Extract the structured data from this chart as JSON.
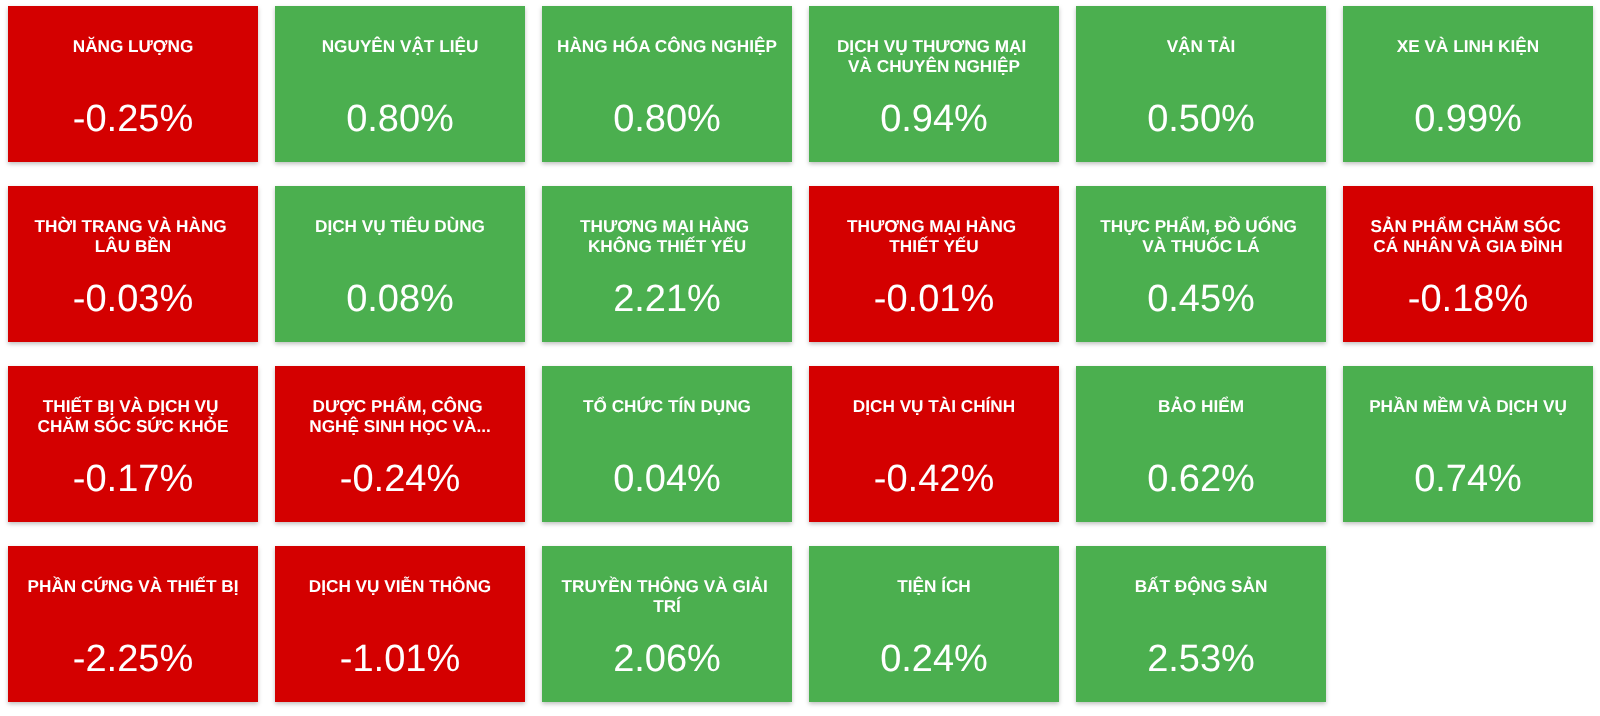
{
  "chart_data": {
    "type": "other",
    "categories": [
      "NĂNG LƯỢNG",
      "NGUYÊN VẬT LIỆU",
      "HÀNG HÓA CÔNG NGHIỆP",
      "DỊCH VỤ THƯƠNG MẠI VÀ CHUYÊN NGHIỆP",
      "VẬN TẢI",
      "XE VÀ LINH KIỆN",
      "THỜI TRANG VÀ HÀNG LÂU BỀN",
      "DỊCH VỤ TIÊU DÙNG",
      "THƯƠNG MẠI HÀNG KHÔNG THIẾT YẾU",
      "THƯƠNG MẠI HÀNG THIẾT YẾU",
      "THỰC PHẨM, ĐỒ UỐNG VÀ THUỐC LÁ",
      "SẢN PHẨM CHĂM SÓC CÁ NHÂN VÀ GIA ĐÌNH",
      "THIẾT BỊ VÀ DỊCH VỤ CHĂM SÓC SỨC KHỎE",
      "DƯỢC PHẨM, CÔNG NGHỆ SINH HỌC VÀ...",
      "TỔ CHỨC TÍN DỤNG",
      "DỊCH VỤ TÀI CHÍNH",
      "BẢO HIỂM",
      "PHẦN MỀM VÀ DỊCH VỤ",
      "PHẦN CỨNG VÀ THIẾT BỊ",
      "DỊCH VỤ VIỄN THÔNG",
      "TRUYỀN THÔNG VÀ GIẢI TRÍ",
      "TIỆN ÍCH",
      "BẤT ĐỘNG SẢN"
    ],
    "values": [
      -0.25,
      0.8,
      0.8,
      0.94,
      0.5,
      0.99,
      -0.03,
      0.08,
      2.21,
      -0.01,
      0.45,
      -0.18,
      -0.17,
      -0.24,
      0.04,
      -0.42,
      0.62,
      0.74,
      -2.25,
      -1.01,
      2.06,
      0.24,
      2.53
    ],
    "value_labels": [
      "-0.25%",
      "0.80%",
      "0.80%",
      "0.94%",
      "0.50%",
      "0.99%",
      "-0.03%",
      "0.08%",
      "2.21%",
      "-0.01%",
      "0.45%",
      "-0.18%",
      "-0.17%",
      "-0.24%",
      "0.04%",
      "-0.42%",
      "0.62%",
      "0.74%",
      "-2.25%",
      "-1.01%",
      "2.06%",
      "0.24%",
      "2.53%"
    ],
    "colors": [
      "#d40000",
      "#4caf50",
      "#4caf50",
      "#4caf50",
      "#4caf50",
      "#4caf50",
      "#d40000",
      "#4caf50",
      "#4caf50",
      "#d40000",
      "#4caf50",
      "#d40000",
      "#d40000",
      "#d40000",
      "#4caf50",
      "#d40000",
      "#4caf50",
      "#4caf50",
      "#d40000",
      "#d40000",
      "#4caf50",
      "#4caf50",
      "#4caf50"
    ]
  }
}
